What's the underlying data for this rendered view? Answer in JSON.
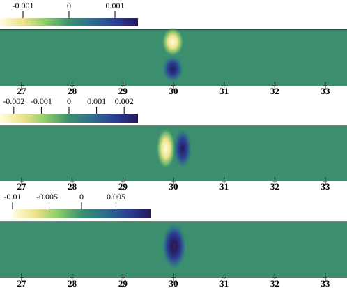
{
  "chart_data": [
    {
      "type": "field",
      "colormap": [
        "#fffde0",
        "#eee38a",
        "#8ccb6a",
        "#3b8f6f",
        "#2f6f8c",
        "#2c3f93",
        "#231a5c"
      ],
      "field_color": "#3b8f6f",
      "clim": [
        -0.0015,
        0.0015
      ],
      "cticks": [
        -0.001,
        0,
        0.001
      ],
      "xlim": [
        26.573,
        33.427
      ],
      "xticks": [
        27,
        28,
        29,
        30,
        31,
        32,
        33
      ]
    },
    {
      "type": "field",
      "colormap": [
        "#fffde0",
        "#eee38a",
        "#8ccb6a",
        "#3b8f6f",
        "#2f6f8c",
        "#2c3f93",
        "#231a5c"
      ],
      "field_color": "#3b8f6f",
      "clim": [
        -0.0025,
        0.0025
      ],
      "cticks": [
        -0.002,
        -0.001,
        0,
        0.001,
        0.002
      ],
      "xlim": [
        26.573,
        33.427
      ],
      "xticks": [
        27,
        28,
        29,
        30,
        31,
        32,
        33
      ]
    },
    {
      "type": "field",
      "colormap": [
        "#fffde0",
        "#eee38a",
        "#8ccb6a",
        "#3b8f6f",
        "#2f6f8c",
        "#2c3f93",
        "#231a5c"
      ],
      "field_color": "#3b8f6f",
      "clim": [
        -0.01,
        0.01
      ],
      "cticks": [
        -0.01,
        -0.005,
        0,
        0.005
      ],
      "xlim": [
        26.573,
        33.427
      ],
      "xticks": [
        27,
        28,
        29,
        30,
        31,
        32,
        33
      ]
    }
  ]
}
